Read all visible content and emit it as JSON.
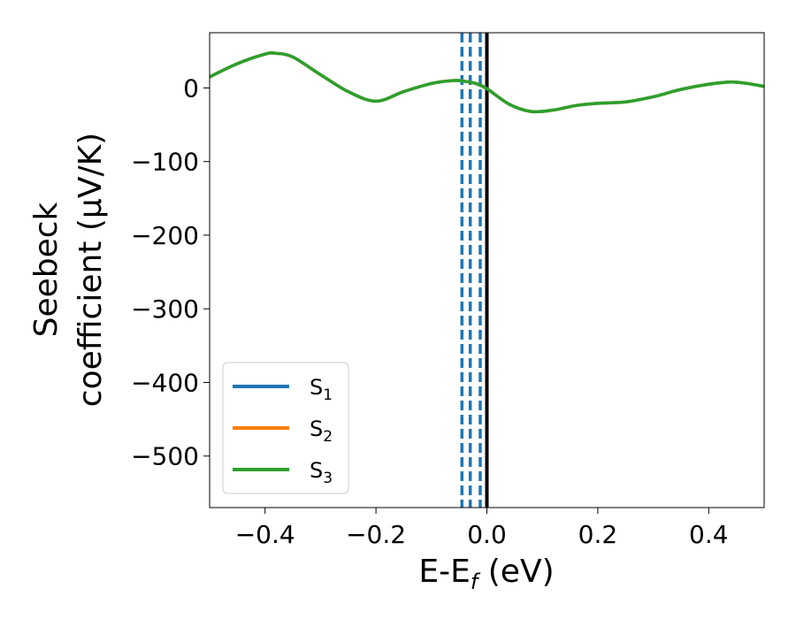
{
  "chart_data": {
    "type": "line",
    "xlabel": "E-E",
    "xlabel_sub": "f",
    "xlabel_unit": "(eV)",
    "ylabel_line1": "Seebeck",
    "ylabel_line2": "coefficient  (μV/K)",
    "xlim": [
      -0.5,
      0.5
    ],
    "ylim": [
      -570,
      75
    ],
    "xticks": [
      -0.4,
      -0.2,
      0.0,
      0.2,
      0.4
    ],
    "xtick_labels": [
      "−0.4",
      "−0.2",
      "0.0",
      "0.2",
      "0.4"
    ],
    "yticks": [
      0,
      -100,
      -200,
      -300,
      -400,
      -500
    ],
    "ytick_labels": [
      "0",
      "−100",
      "−200",
      "−300",
      "−400",
      "−500"
    ],
    "grid": false,
    "legend_position": "lower-left",
    "series": [
      {
        "name": "S",
        "sub": "1",
        "color": "#1f77b4",
        "x": [
          -0.5,
          -0.45,
          -0.4,
          -0.38,
          -0.35,
          -0.3,
          -0.25,
          -0.2,
          -0.15,
          -0.1,
          -0.06,
          -0.04,
          -0.02,
          0.0,
          0.04,
          0.08,
          0.12,
          0.16,
          0.2,
          0.25,
          0.3,
          0.35,
          0.4,
          0.44,
          0.47,
          0.5
        ],
        "y": [
          15,
          33,
          46,
          47,
          42,
          18,
          -5,
          -18,
          -5,
          6,
          10,
          9,
          6,
          -1,
          -22,
          -32,
          -30,
          -24,
          -21,
          -19,
          -12,
          -2,
          5,
          8,
          6,
          2
        ]
      },
      {
        "name": "S",
        "sub": "2",
        "color": "#ff7f0e",
        "x": [
          -0.5,
          -0.45,
          -0.4,
          -0.38,
          -0.35,
          -0.3,
          -0.25,
          -0.2,
          -0.15,
          -0.1,
          -0.06,
          -0.04,
          -0.02,
          0.0,
          0.04,
          0.08,
          0.12,
          0.16,
          0.2,
          0.25,
          0.3,
          0.35,
          0.4,
          0.44,
          0.47,
          0.5
        ],
        "y": [
          15,
          33,
          46,
          47,
          42,
          18,
          -5,
          -18,
          -5,
          6,
          10,
          9,
          6,
          -1,
          -22,
          -32,
          -30,
          -24,
          -21,
          -19,
          -12,
          -2,
          5,
          8,
          6,
          2
        ]
      },
      {
        "name": "S",
        "sub": "3",
        "color": "#2ca02c",
        "x": [
          -0.5,
          -0.45,
          -0.4,
          -0.38,
          -0.35,
          -0.3,
          -0.25,
          -0.2,
          -0.15,
          -0.1,
          -0.06,
          -0.04,
          -0.02,
          0.0,
          0.04,
          0.08,
          0.12,
          0.16,
          0.2,
          0.25,
          0.3,
          0.35,
          0.4,
          0.44,
          0.47,
          0.5
        ],
        "y": [
          15,
          33,
          46,
          47,
          42,
          18,
          -5,
          -18,
          -5,
          6,
          10,
          9,
          6,
          -1,
          -22,
          -32,
          -30,
          -24,
          -21,
          -19,
          -12,
          -2,
          5,
          8,
          6,
          2
        ]
      }
    ],
    "vertical_lines": [
      {
        "x": -0.045,
        "color": "#1f77b4",
        "style": "dashed"
      },
      {
        "x": -0.03,
        "color": "#1f77b4",
        "style": "dashed"
      },
      {
        "x": -0.012,
        "color": "#1f77b4",
        "style": "dashed"
      },
      {
        "x": 0.0,
        "color": "#000000",
        "style": "solid"
      }
    ]
  }
}
